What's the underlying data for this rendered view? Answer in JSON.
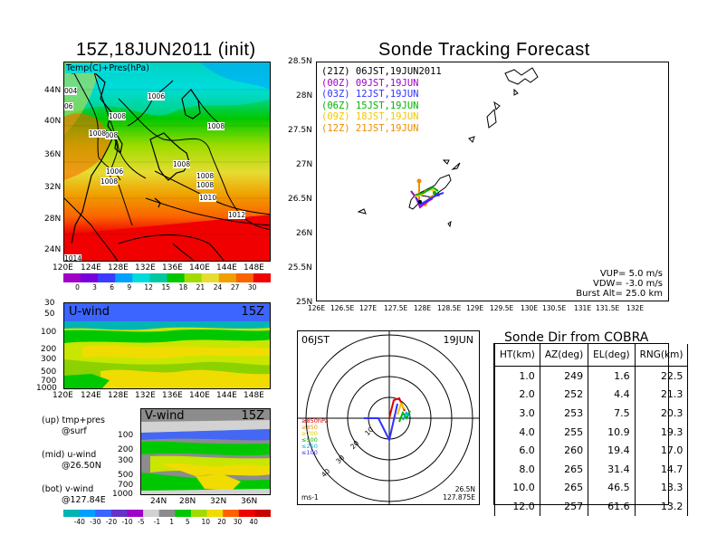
{
  "left": {
    "title": "15Z,18JUN2011 (init)",
    "map_label": "Temp(C)+Pres(hPa)",
    "lat_labels": [
      "44N",
      "40N",
      "36N",
      "32N",
      "28N",
      "24N"
    ],
    "lon_labels": [
      "120E",
      "124E",
      "128E",
      "132E",
      "136E",
      "140E",
      "144E",
      "148E"
    ],
    "pressure_labels": [
      "004",
      "1006",
      "06",
      "1008",
      "008",
      "1008",
      "1008",
      "1006",
      "1008",
      "1008",
      "1008",
      "1010",
      "1012",
      "1014",
      "1008"
    ],
    "temp_colorbar": {
      "labels": [
        "0",
        "3",
        "6",
        "9",
        "12",
        "15",
        "18",
        "21",
        "24",
        "27",
        "30"
      ],
      "colors": [
        "#a000c8",
        "#7800dc",
        "#3c3cff",
        "#00a0ff",
        "#00dcdc",
        "#00c8a0",
        "#00c800",
        "#a0dc00",
        "#e6dc32",
        "#f0a000",
        "#fa6400",
        "#f00000"
      ]
    },
    "uwind": {
      "label": "U-wind",
      "time": "15Z",
      "levels": [
        "30",
        "50",
        "100",
        "200",
        "300",
        "500",
        "700",
        "1000"
      ],
      "lon_labels": [
        "120E",
        "124E",
        "128E",
        "132E",
        "136E",
        "140E",
        "144E",
        "148E"
      ]
    },
    "vwind": {
      "label": "V-wind",
      "time": "15Z",
      "levels": [
        "100",
        "200",
        "300",
        "500",
        "700",
        "1000"
      ],
      "lat_labels": [
        "24N",
        "28N",
        "32N",
        "36N"
      ]
    },
    "notes": [
      {
        "head": "(up) tmp+pres",
        "sub": "@surf"
      },
      {
        "head": "(mid) u-wind",
        "sub": "@26.50N"
      },
      {
        "head": "(bot) v-wind",
        "sub": "@127.84E"
      }
    ],
    "wind_colorbar": {
      "labels": [
        "-40",
        "-30",
        "-20",
        "-10",
        "-5",
        "-1",
        "1",
        "5",
        "10",
        "20",
        "30",
        "40"
      ],
      "colors": [
        "#00b4b4",
        "#00a0ff",
        "#3c64ff",
        "#6432c8",
        "#a000c8",
        "#d2d2d2",
        "#8c8c8c",
        "#00c800",
        "#a0dc00",
        "#f0dc00",
        "#fa6400",
        "#f00000",
        "#c80000"
      ]
    }
  },
  "tracking": {
    "title": "Sonde Tracking Forecast",
    "lat_labels": [
      "28.5N",
      "28N",
      "27.5N",
      "27N",
      "26.5N",
      "26N",
      "25.5N",
      "25N"
    ],
    "lon_labels": [
      "126E",
      "126.5E",
      "127E",
      "127.5E",
      "128E",
      "128.5E",
      "129E",
      "129.5E",
      "130E",
      "130.5E",
      "131E",
      "131.5E",
      "132E"
    ],
    "launches": [
      {
        "text": "(21Z)  06JST,19JUN2011",
        "color": "#000000"
      },
      {
        "text": "(00Z)  09JST,19JUN",
        "color": "#a000c8"
      },
      {
        "text": "(03Z)  12JST,19JUN",
        "color": "#3232ff"
      },
      {
        "text": "(06Z)  15JST,19JUN",
        "color": "#00b400"
      },
      {
        "text": "(09Z)  18JST,19JUN",
        "color": "#f0c800"
      },
      {
        "text": "(12Z)  21JST,19JUN",
        "color": "#f08c00"
      }
    ],
    "params": [
      "VUP=  5.0  m/s",
      "VDW= -3.0  m/s",
      "Burst Alt=  25.0  km"
    ]
  },
  "polar": {
    "time": "06JST",
    "date": "19JUN",
    "ring_labels": [
      "10",
      "20",
      "30",
      "40"
    ],
    "unit": "ms-1",
    "lat": "26.5N",
    "lon": "127.875E",
    "levels": [
      {
        "text": "≥850hPa",
        "color": "#e00000"
      },
      {
        "text": "≥850",
        "color": "#f08c00"
      },
      {
        "text": "≥700",
        "color": "#e6c800"
      },
      {
        "text": "≤500",
        "color": "#00b400"
      },
      {
        "text": "≤250",
        "color": "#00b4c8"
      },
      {
        "text": "≤100",
        "color": "#3232ff"
      }
    ]
  },
  "chart_data": {
    "type": "table",
    "title": "Sonde Dir from COBRA",
    "columns": [
      "HT(km)",
      "AZ(deg)",
      "EL(deg)",
      "RNG(km)"
    ],
    "rows": [
      [
        "1.0",
        "249",
        "1.6",
        "22.5"
      ],
      [
        "2.0",
        "252",
        "4.4",
        "21.3"
      ],
      [
        "3.0",
        "253",
        "7.5",
        "20.3"
      ],
      [
        "4.0",
        "255",
        "10.9",
        "19.3"
      ],
      [
        "6.0",
        "260",
        "19.4",
        "17.0"
      ],
      [
        "8.0",
        "265",
        "31.4",
        "14.7"
      ],
      [
        "10.0",
        "265",
        "46.5",
        "13.3"
      ],
      [
        "12.0",
        "257",
        "61.6",
        "13.2"
      ]
    ]
  }
}
